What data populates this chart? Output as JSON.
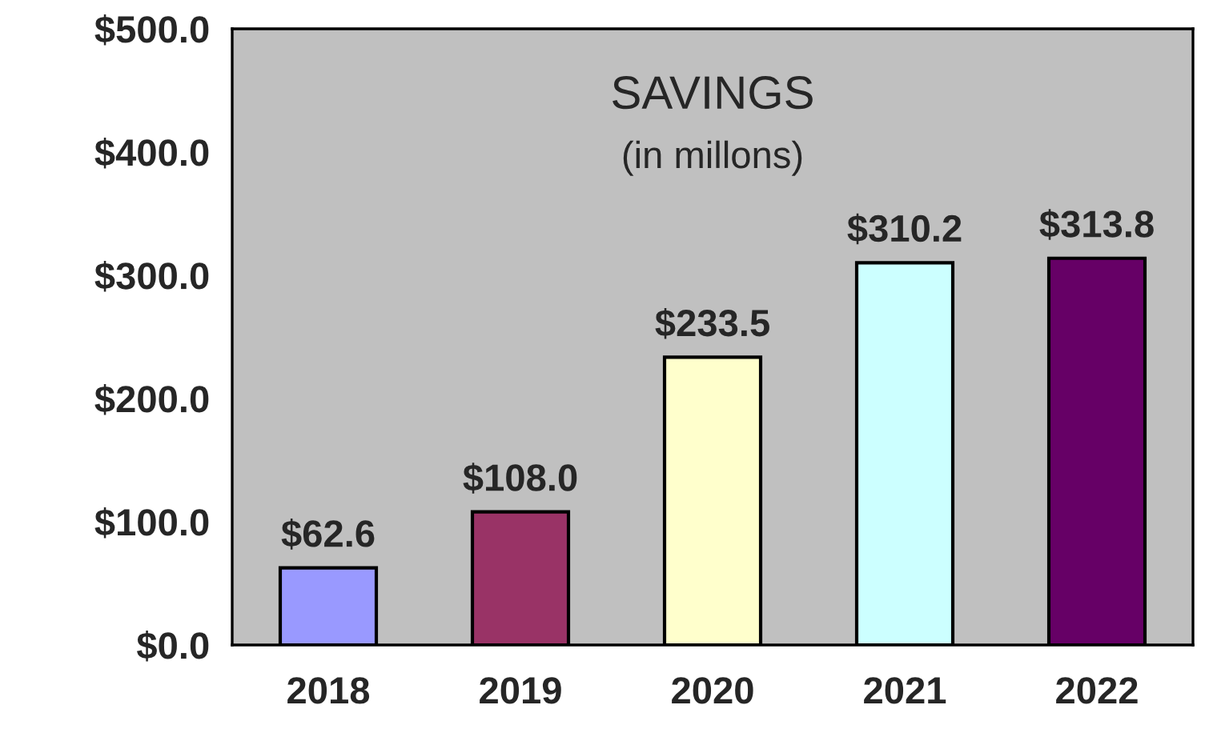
{
  "chart_data": {
    "type": "bar",
    "title": "SAVINGS",
    "subtitle": "(in millons)",
    "categories": [
      "2018",
      "2019",
      "2020",
      "2021",
      "2022"
    ],
    "values": [
      62.6,
      108.0,
      233.5,
      310.2,
      313.8
    ],
    "colors": [
      "#9999ff",
      "#993366",
      "#ffffcc",
      "#ccffff",
      "#660066"
    ],
    "value_labels": [
      "$62.6",
      "$108.0",
      "$233.5",
      "$310.2",
      "$313.8"
    ],
    "ylim": [
      0,
      500
    ],
    "yticks": [
      {
        "value": 0,
        "label": "$0.0"
      },
      {
        "value": 100,
        "label": "$100.0"
      },
      {
        "value": 200,
        "label": "$200.0"
      },
      {
        "value": 300,
        "label": "$300.0"
      },
      {
        "value": 400,
        "label": "$400.0"
      },
      {
        "value": 500,
        "label": "$500.0"
      }
    ],
    "grid": false,
    "legend": false
  }
}
